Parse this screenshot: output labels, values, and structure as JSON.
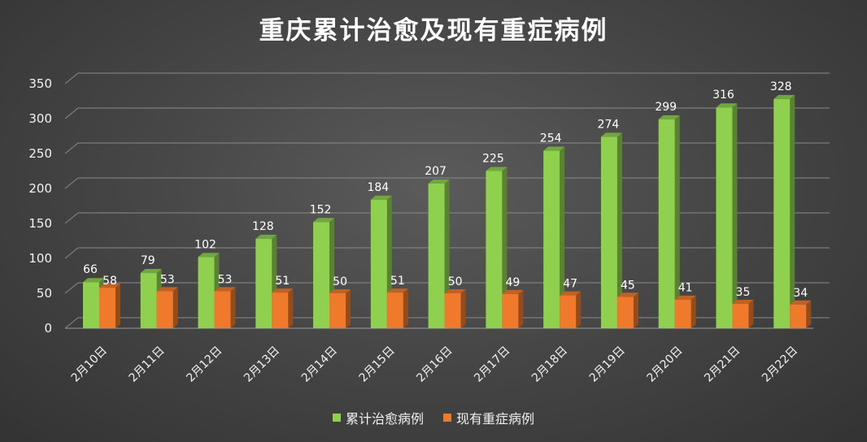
{
  "chart_data": {
    "type": "bar",
    "title": "重庆累计治愈及现有重症病例",
    "categories": [
      "2月10日",
      "2月11日",
      "2月12日",
      "2月13日",
      "2月14日",
      "2月15日",
      "2月16日",
      "2月17日",
      "2月18日",
      "2月19日",
      "2月20日",
      "2月21日",
      "2月22日"
    ],
    "series": [
      {
        "name": "累计治愈病例",
        "values": [
          66,
          79,
          102,
          128,
          152,
          184,
          207,
          225,
          254,
          274,
          299,
          316,
          328
        ],
        "color": "#8fd14f"
      },
      {
        "name": "现有重症病例",
        "values": [
          58,
          53,
          53,
          51,
          50,
          51,
          50,
          49,
          47,
          45,
          41,
          35,
          34
        ],
        "color": "#f07a2c"
      }
    ],
    "ylim": [
      0,
      350
    ],
    "yticks": [
      0,
      50,
      100,
      150,
      200,
      250,
      300,
      350
    ],
    "grid": true,
    "legend_position": "bottom"
  }
}
